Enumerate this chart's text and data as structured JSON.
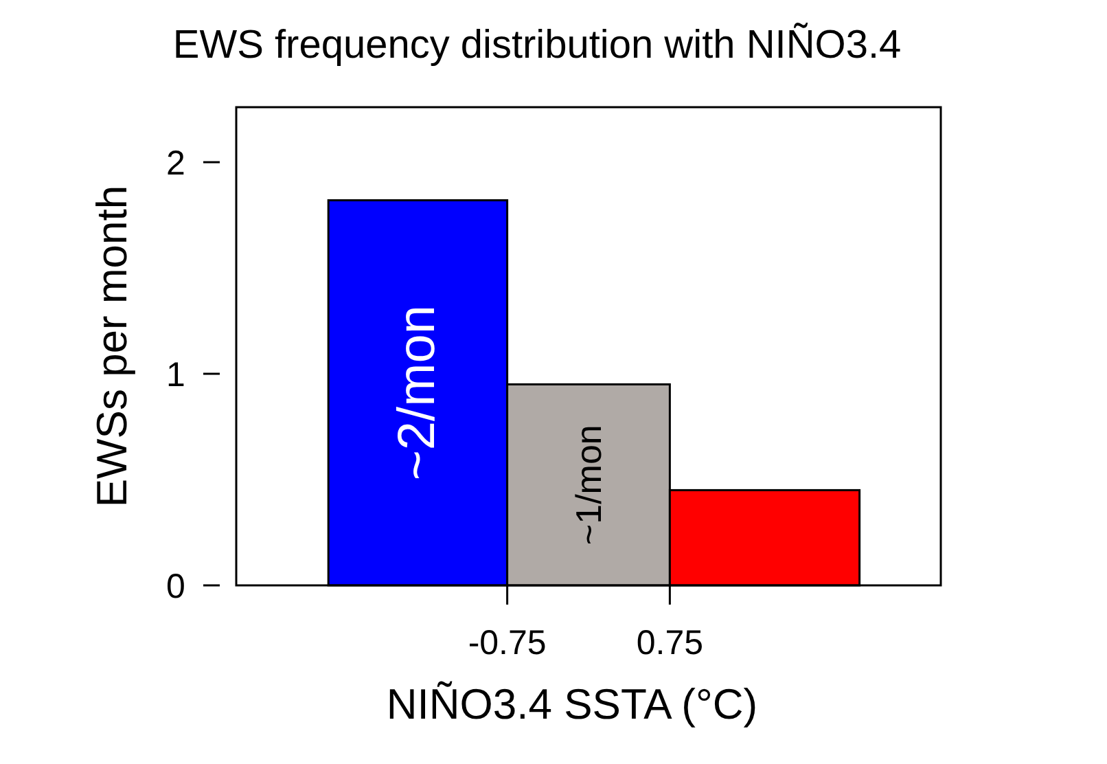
{
  "chart_data": {
    "type": "histogram",
    "title": "EWS frequency distribution with NIÑO3.4",
    "xlabel": "NIÑO3.4 SSTA (°C)",
    "ylabel": "EWSs per month",
    "bins": [
      -2.4,
      -0.75,
      0.75,
      2.5
    ],
    "values": [
      1.82,
      0.95,
      0.45
    ],
    "colors": [
      "#0000ff",
      "#b0aaa6",
      "#ff0000"
    ],
    "xlim": [
      -3.25,
      3.25
    ],
    "xticks": [
      -0.75,
      0.75
    ],
    "ylim": [
      0,
      2.26
    ],
    "yticks": [
      0,
      1,
      2
    ],
    "grid": false,
    "annotations": [
      "~2/mon",
      "~1/mon"
    ]
  }
}
